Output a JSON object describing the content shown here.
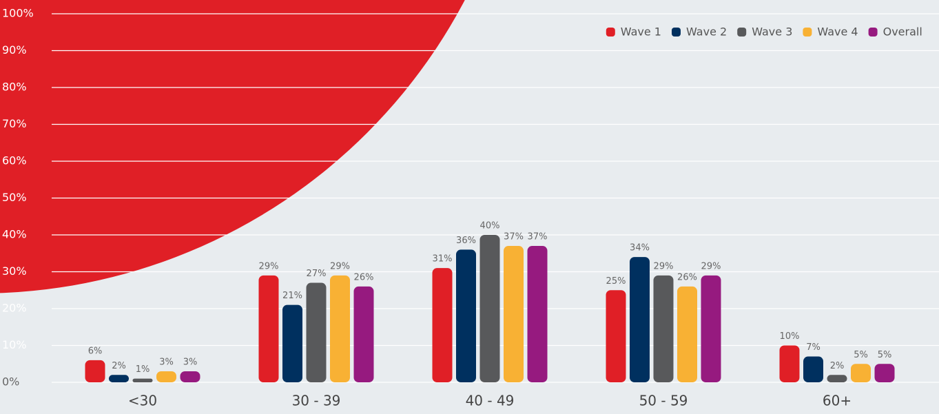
{
  "chart_data": {
    "type": "bar",
    "categories": [
      "<30",
      "30 - 39",
      "40 - 49",
      "50 - 59",
      "60+"
    ],
    "series": [
      {
        "name": "Wave 1",
        "color": "#e01f26",
        "values": [
          6,
          29,
          31,
          25,
          10
        ],
        "value_labels": [
          "6%",
          "29%",
          "31%",
          "25%",
          "10%"
        ]
      },
      {
        "name": "Wave 2",
        "color": "#00305f",
        "values": [
          2,
          21,
          36,
          34,
          7
        ],
        "value_labels": [
          "2%",
          "21%",
          "36%",
          "34%",
          "7%"
        ]
      },
      {
        "name": "Wave 3",
        "color": "#58595b",
        "values": [
          1,
          27,
          40,
          29,
          2
        ],
        "value_labels": [
          "1%",
          "27%",
          "40%",
          "29%",
          "2%"
        ]
      },
      {
        "name": "Wave 4",
        "color": "#f8b134",
        "values": [
          3,
          29,
          37,
          26,
          5
        ],
        "value_labels": [
          "3%",
          "29%",
          "37%",
          "26%",
          "5%"
        ]
      },
      {
        "name": "Overall",
        "color": "#961a7f",
        "values": [
          3,
          26,
          37,
          29,
          5
        ],
        "value_labels": [
          "3%",
          "26%",
          "37%",
          "29%",
          "5%"
        ]
      }
    ],
    "ylim": [
      0,
      100
    ],
    "yticks": [
      {
        "value": 0,
        "label": "0%"
      },
      {
        "value": 10,
        "label": "10%"
      },
      {
        "value": 20,
        "label": "20%"
      },
      {
        "value": 30,
        "label": "30%"
      },
      {
        "value": 40,
        "label": "40%"
      },
      {
        "value": 50,
        "label": "50%"
      },
      {
        "value": 60,
        "label": "60%"
      },
      {
        "value": 70,
        "label": "70%"
      },
      {
        "value": 80,
        "label": "80%"
      },
      {
        "value": 90,
        "label": "90%"
      },
      {
        "value": 100,
        "label": "100%"
      }
    ],
    "grid": true,
    "legend": "top-right"
  }
}
